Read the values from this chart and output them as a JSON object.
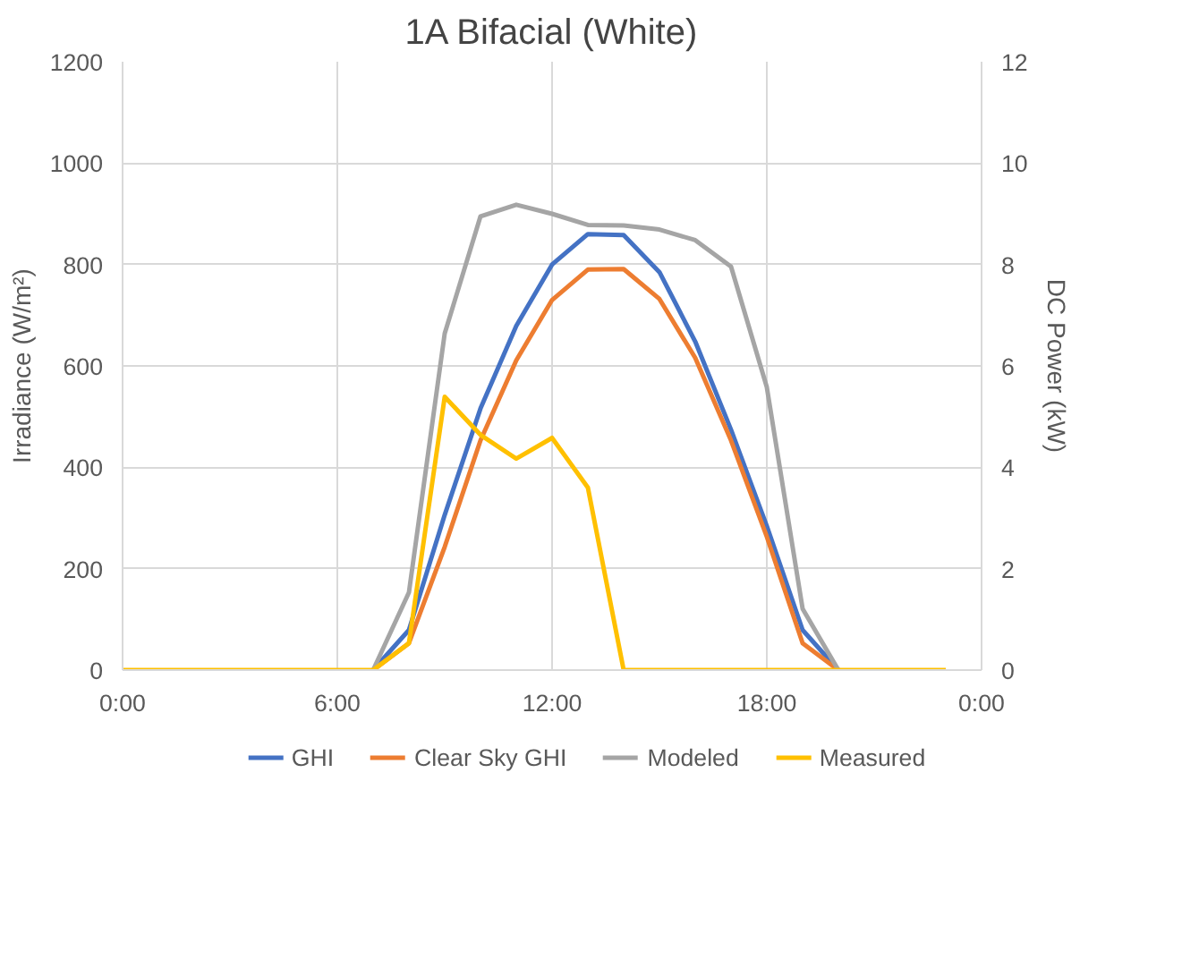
{
  "chart_data": {
    "type": "line",
    "title": "1A Bifacial (White)",
    "ylabel": "Irradiance (W/m²)",
    "y2label": "DC Power (kW)",
    "x": [
      0,
      1,
      2,
      3,
      4,
      5,
      6,
      7,
      8,
      9,
      10,
      11,
      12,
      13,
      14,
      15,
      16,
      17,
      18,
      19,
      20,
      21,
      22,
      23
    ],
    "xlim": [
      0,
      24
    ],
    "xticks": [
      {
        "value": 0,
        "label": "0:00"
      },
      {
        "value": 6,
        "label": "6:00"
      },
      {
        "value": 12,
        "label": "12:00"
      },
      {
        "value": 18,
        "label": "18:00"
      },
      {
        "value": 24,
        "label": "0:00"
      }
    ],
    "ylim": [
      0,
      1200
    ],
    "yticks": [
      0,
      200,
      400,
      600,
      800,
      1000,
      1200
    ],
    "y2lim": [
      0,
      12
    ],
    "y2ticks": [
      0,
      2,
      4,
      6,
      8,
      10,
      12
    ],
    "grid": true,
    "legend": "bottom",
    "line_style": "solid",
    "series": [
      {
        "name": "GHI",
        "color": "#4472c4",
        "values": [
          null,
          null,
          null,
          null,
          null,
          null,
          null,
          0,
          79,
          306,
          516,
          679,
          800,
          860,
          858,
          785,
          648,
          474,
          284,
          79,
          0,
          null,
          null,
          null
        ]
      },
      {
        "name": "Clear Sky GHI",
        "color": "#ed7d31",
        "values": [
          null,
          null,
          null,
          null,
          null,
          null,
          null,
          0,
          53,
          243,
          453,
          611,
          730,
          790,
          791,
          732,
          616,
          453,
          263,
          53,
          0,
          null,
          null,
          null
        ]
      },
      {
        "name": "Modeled",
        "color": "#a5a5a5",
        "axis": "y2",
        "values": [
          null,
          null,
          null,
          null,
          null,
          null,
          null,
          0,
          1.53,
          6.64,
          8.95,
          9.18,
          9.0,
          8.78,
          8.77,
          8.69,
          8.48,
          7.96,
          5.58,
          1.21,
          0,
          null,
          null,
          null
        ]
      },
      {
        "name": "Measured",
        "color": "#ffc000",
        "axis": "y2",
        "values": [
          0,
          0,
          0,
          0,
          0,
          0,
          0,
          0,
          0.53,
          5.39,
          4.64,
          4.17,
          4.58,
          3.6,
          0,
          0,
          0,
          0,
          0,
          0,
          0,
          0,
          0,
          0
        ]
      }
    ]
  }
}
